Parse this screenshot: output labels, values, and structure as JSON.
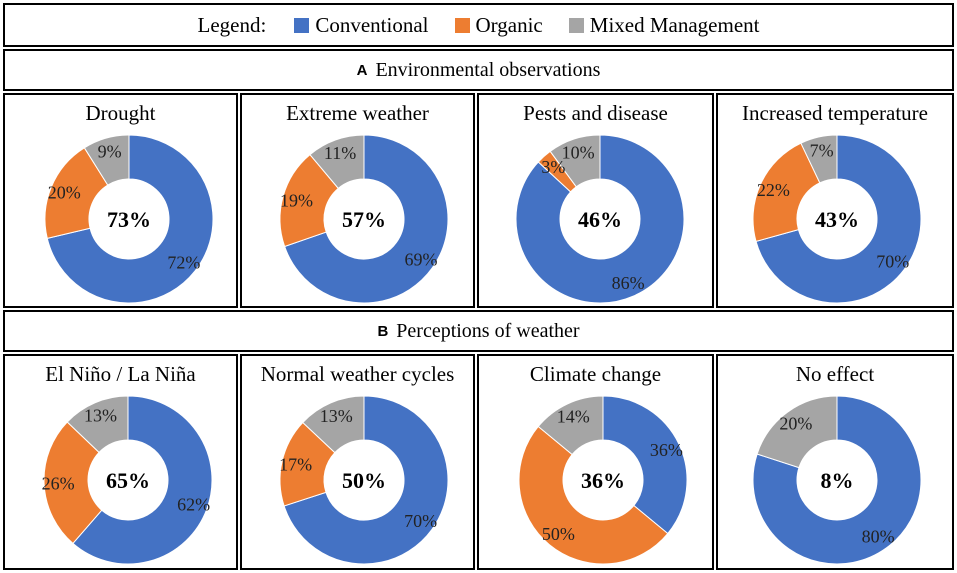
{
  "legend": {
    "title": "Legend:",
    "items": [
      {
        "label": "Conventional",
        "color": "#4472C4"
      },
      {
        "label": "Organic",
        "color": "#ED7D31"
      },
      {
        "label": "Mixed Management",
        "color": "#A5A5A5"
      }
    ]
  },
  "sections": [
    {
      "letter": "A",
      "title": "Environmental observations"
    },
    {
      "letter": "B",
      "title": "Perceptions of weather"
    }
  ],
  "chart_data": [
    {
      "type": "pie",
      "section": "A",
      "title": "Drought",
      "center": "73%",
      "categories": [
        "Conventional",
        "Organic",
        "Mixed Management"
      ],
      "values": [
        72,
        20,
        9
      ],
      "labels": [
        "72%",
        "20%",
        "9%"
      ]
    },
    {
      "type": "pie",
      "section": "A",
      "title": "Extreme weather",
      "center": "57%",
      "categories": [
        "Conventional",
        "Organic",
        "Mixed Management"
      ],
      "values": [
        69,
        19,
        11
      ],
      "labels": [
        "69%",
        "19%",
        "11%"
      ]
    },
    {
      "type": "pie",
      "section": "A",
      "title": "Pests and disease",
      "center": "46%",
      "categories": [
        "Conventional",
        "Organic",
        "Mixed Management"
      ],
      "values": [
        86,
        3,
        10
      ],
      "labels": [
        "86%",
        "3%",
        "10%"
      ]
    },
    {
      "type": "pie",
      "section": "A",
      "title": "Increased temperature",
      "center": "43%",
      "categories": [
        "Conventional",
        "Organic",
        "Mixed Management"
      ],
      "values": [
        70,
        22,
        7
      ],
      "labels": [
        "70%",
        "22%",
        "7%"
      ]
    },
    {
      "type": "pie",
      "section": "B",
      "title": "El Niño / La Niña",
      "center": "65%",
      "categories": [
        "Conventional",
        "Organic",
        "Mixed Management"
      ],
      "values": [
        62,
        26,
        13
      ],
      "labels": [
        "62%",
        "26%",
        "13%"
      ]
    },
    {
      "type": "pie",
      "section": "B",
      "title": "Normal weather cycles",
      "center": "50%",
      "categories": [
        "Conventional",
        "Organic",
        "Mixed Management"
      ],
      "values": [
        70,
        17,
        13
      ],
      "labels": [
        "70%",
        "17%",
        "13%"
      ]
    },
    {
      "type": "pie",
      "section": "B",
      "title": "Climate change",
      "center": "36%",
      "categories": [
        "Conventional",
        "Organic",
        "Mixed Management"
      ],
      "values": [
        36,
        50,
        14
      ],
      "labels": [
        "36%",
        "50%",
        "14%"
      ]
    },
    {
      "type": "pie",
      "section": "B",
      "title": "No effect",
      "center": "8%",
      "categories": [
        "Conventional",
        "Organic",
        "Mixed Management"
      ],
      "values": [
        80,
        0,
        20
      ],
      "labels": [
        "80%",
        "",
        "20%"
      ]
    }
  ]
}
